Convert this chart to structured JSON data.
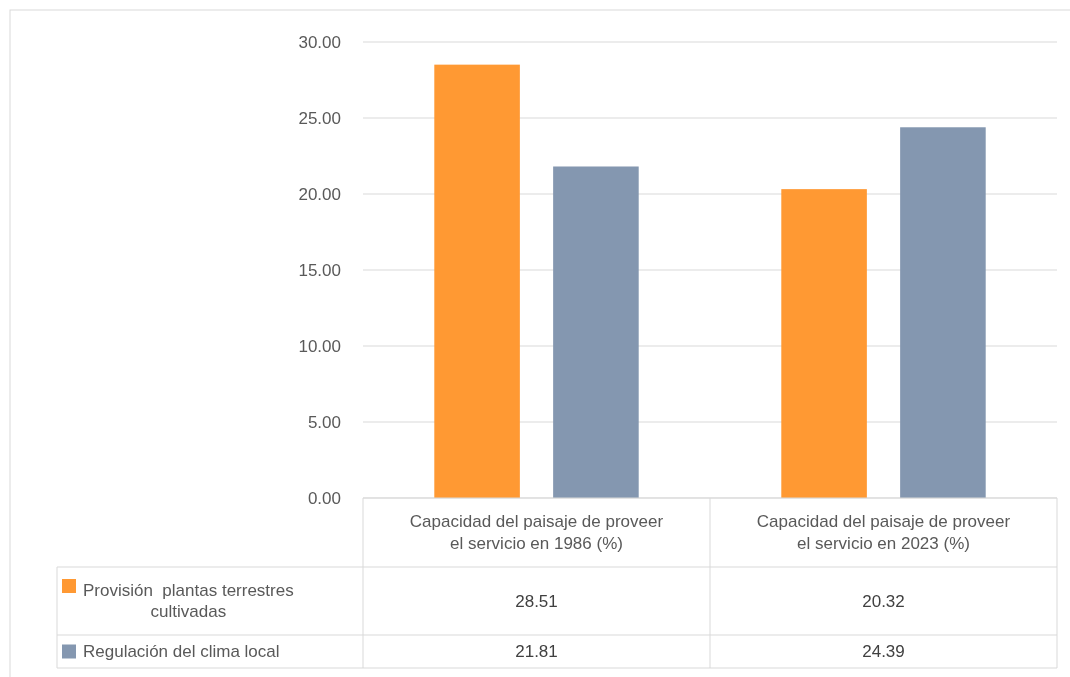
{
  "chart_data": {
    "type": "bar",
    "categories": [
      "Capacidad del paisaje de proveer el servicio en 1986 (%)",
      "Capacidad del paisaje de proveer el servicio en 2023 (%)"
    ],
    "series": [
      {
        "name": "Provisión  plantas terrestres cultivadas",
        "color": "#ff9933",
        "values": [
          28.51,
          20.32
        ]
      },
      {
        "name": "Regulación del clima local",
        "color": "#8497b0",
        "values": [
          21.81,
          24.39
        ]
      }
    ],
    "ylim": [
      0,
      30
    ],
    "yticks": [
      {
        "value": 0,
        "label": "0.00"
      },
      {
        "value": 5,
        "label": "5.00"
      },
      {
        "value": 10,
        "label": "10.00"
      },
      {
        "value": 15,
        "label": "15.00"
      },
      {
        "value": 20,
        "label": "20.00"
      },
      {
        "value": 25,
        "label": "25.00"
      },
      {
        "value": 30,
        "label": "30.00"
      }
    ],
    "grid": "y",
    "legend": "bottom",
    "data_labels": true
  }
}
